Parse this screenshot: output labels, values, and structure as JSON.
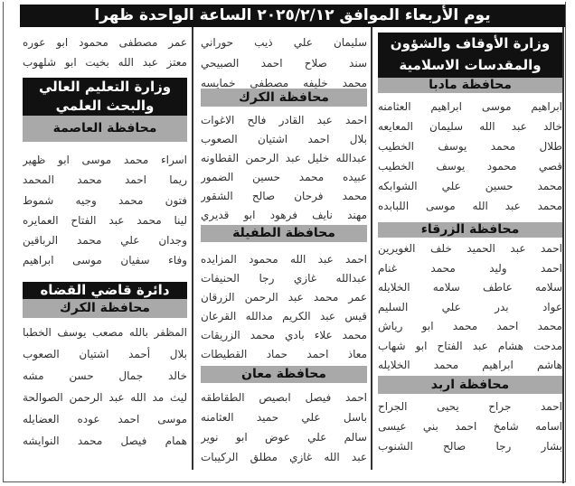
{
  "header": {
    "title": "يوم الأربعاء الموافق ٢٠٢٥/٢/١٢ الساعة الواحدة ظهرا"
  },
  "right": {
    "ministry": "وزارة الأوقاف والشؤون والمقدسات الاسلامية",
    "sections": [
      {
        "governorate": "محافظة مادبا",
        "names": [
          "ابراهيم موسى ابراهيم العثامنه",
          "خالد عبد الله سليمان المعايعه",
          "طلال محمد يوسف الخطيب",
          "قصي محمود يوسف الخطيب",
          "محمد حسين علي الشوابكه",
          "محمد عبد الله موسى اللبابده"
        ]
      },
      {
        "governorate": "محافظة الزرقاء",
        "names": [
          "احمد عبد الحميد خلف الغويرين",
          "احمد وليد محمد غنام",
          "سلامه عاطف سلامه الخلايله",
          "عواد بدر علي السليم",
          "محمد احمد محمد ابو رياش",
          "مدحت هشام عبد الفتاح ابو شهاب",
          "هاشم ابراهيم محمد الخلايله"
        ]
      },
      {
        "governorate": "محافظة اربد",
        "names": [
          "احمد جراح يحيى الجراح",
          "اسامه شامخ احمد بني عيسى",
          "بشار رجا صالح الشنوب"
        ]
      }
    ]
  },
  "middle": {
    "top_names": [
      "سليمان علي ذيب حوراني",
      "سند صلاح احمد الصبيحي",
      "محمد خليفه مصطفى خمايسه"
    ],
    "sections": [
      {
        "governorate": "محافظة الكرك",
        "names": [
          "احمد عبد القادر فالح الاغوات",
          "بلال احمد اشتيان الصعوب",
          "عبدالله خليل عبد الرحمن القطاونه",
          "عبيده محمد حسين الضمور",
          "محمد فرحان صالح الشقور",
          "مهند نايف فرهود ابو قديري"
        ]
      },
      {
        "governorate": "محافظة الطفيلة",
        "names": [
          "احمد عبد الله محمود المزايده",
          "عبدالله غازي رجا الحنيفات",
          "عمر محمد عبد الرحمن الزرقان",
          "قيس عبد الكريم مدالله القرعان",
          "محمد علاء بادي محمد الزريقات",
          "معاذ احمد حماد القطيطات"
        ]
      },
      {
        "governorate": "محافظة معان",
        "names": [
          "احمد فيصل ابصيص الطقاطقه",
          "باسل علي حميد العثامنه",
          "سالم علي عوض ابو نوير",
          "عبد الله غازي مطلق الركيبات"
        ]
      }
    ]
  },
  "left": {
    "top_names": [
      "عمر مصطفى محمود ابو عوره",
      "معتز عبد الله بخيت ابو شلهوب"
    ],
    "ministry": "وزارة التعليم العالي والبحث العلمي",
    "sections": [
      {
        "governorate": "محافظة العاصمة",
        "names": [
          "اسراء محمد موسى ابو ظهير",
          "ريما احمد محمد المحمد",
          "فتون محمد وجيه شموط",
          "لينا محمد عبد الفتاح العمايره",
          "وجدان علي محمد الرباقين",
          "وفاء سفيان موسى ابراهيم"
        ]
      }
    ],
    "department": "دائرة قاضي القضاه",
    "department_sections": [
      {
        "governorate": "محافظة الكرك",
        "names": [
          "المظفر بالله مصعب يوسف الخطبا",
          "بلال أحمد اشتيان الصعوب",
          "خالد جمال حسن مشه",
          "ليث مد الله عبد الرحمن الصوالحة",
          "موسى احمد عوده العضايله",
          "همام فيصل محمد النوايشه"
        ]
      }
    ]
  }
}
